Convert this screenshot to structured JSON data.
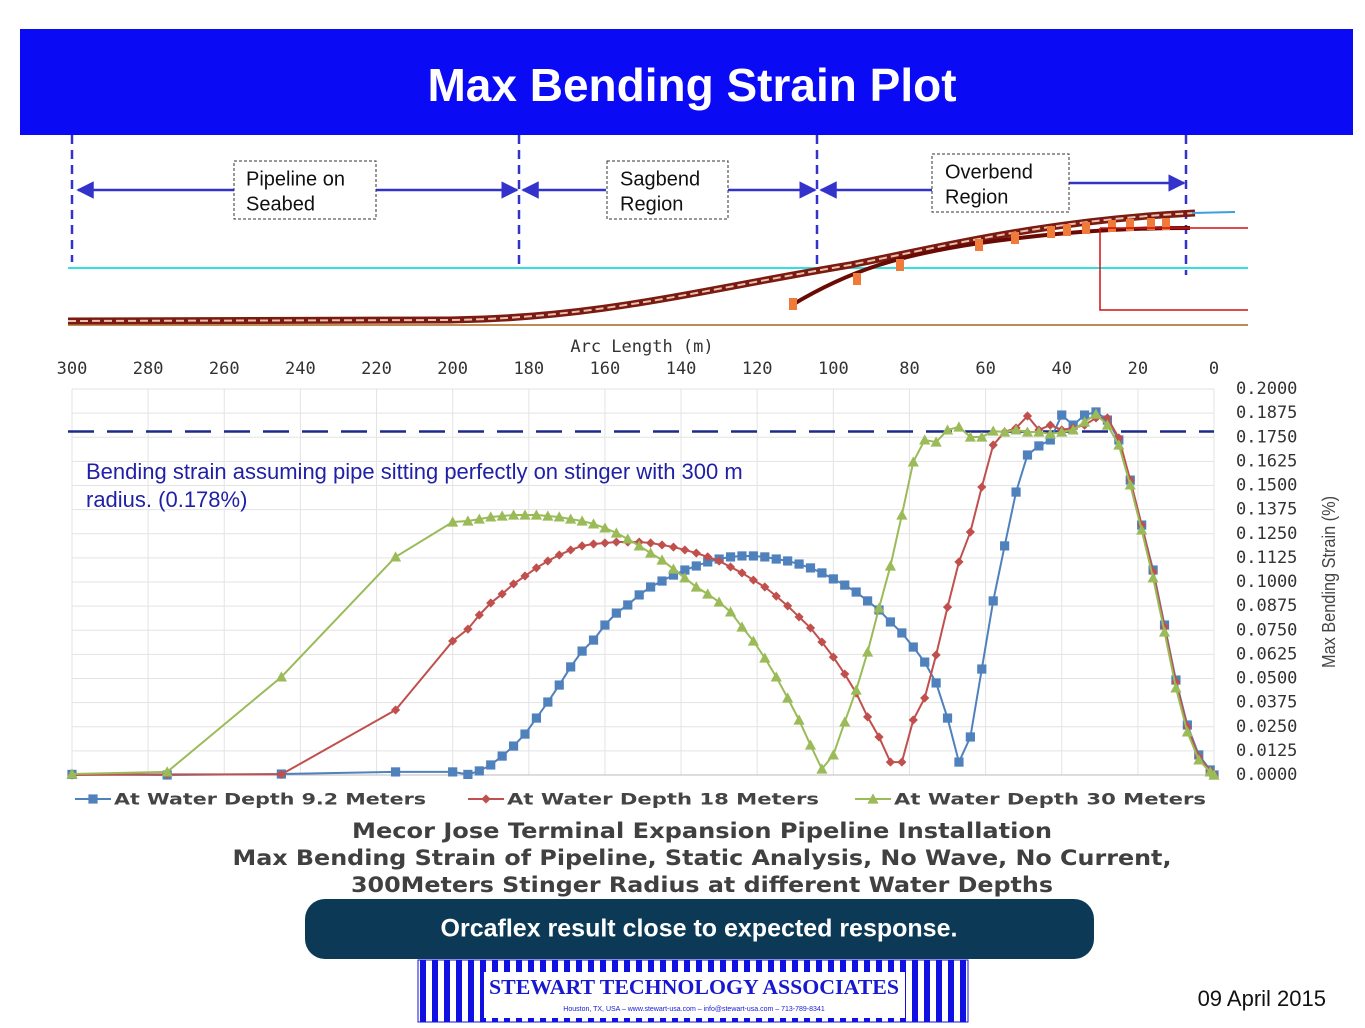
{
  "slide": {
    "title": "Max Bending Strain Plot",
    "regions": [
      [
        "Pipeline on",
        "Seabed"
      ],
      [
        "Sagbend",
        "Region"
      ],
      [
        "Overbend",
        "Region"
      ]
    ],
    "callout": "Orcaflex result close to expected response.",
    "logo": {
      "name": "STEWART TECHNOLOGY ASSOCIATES",
      "contact": "Houston, TX, USA – www.stewart-usa.com – info@stewart-usa.com – 713-789-8341"
    },
    "date": "09 April 2015"
  },
  "chart_data": {
    "type": "line",
    "xlabel": "Arc Length (m)",
    "ylabel": "Max Bending Strain (%)",
    "caption": [
      "Mecor Jose Terminal Expansion Pipeline Installation",
      "Max Bending Strain of Pipeline, Static Analysis, No Wave, No Current,",
      "300Meters Stinger Radius at different Water Depths"
    ],
    "annotation": [
      "Bending strain assuming pipe sitting perfectly on stinger with 300 m",
      "radius. (0.178%)"
    ],
    "reference_value": 0.178,
    "xlim": [
      300,
      0
    ],
    "xticks": [
      300,
      280,
      260,
      240,
      220,
      200,
      180,
      160,
      140,
      120,
      100,
      80,
      60,
      40,
      20,
      0
    ],
    "ylim": [
      0,
      0.2
    ],
    "yticks": [
      {
        "value": 0.2,
        "label": "0.2000"
      },
      {
        "value": 0.1875,
        "label": "0.1875"
      },
      {
        "value": 0.175,
        "label": "0.1750"
      },
      {
        "value": 0.1625,
        "label": "0.1625"
      },
      {
        "value": 0.15,
        "label": "0.1500"
      },
      {
        "value": 0.1375,
        "label": "0.1375"
      },
      {
        "value": 0.125,
        "label": "0.1250"
      },
      {
        "value": 0.1125,
        "label": "0.1125"
      },
      {
        "value": 0.1,
        "label": "0.1000"
      },
      {
        "value": 0.0875,
        "label": "0.0875"
      },
      {
        "value": 0.075,
        "label": "0.0750"
      },
      {
        "value": 0.0625,
        "label": "0.0625"
      },
      {
        "value": 0.05,
        "label": "0.0500"
      },
      {
        "value": 0.0375,
        "label": "0.0375"
      },
      {
        "value": 0.025,
        "label": "0.0250"
      },
      {
        "value": 0.0125,
        "label": "0.0125"
      },
      {
        "value": 0,
        "label": "0.0000"
      }
    ],
    "grid": true,
    "x": [
      300,
      275,
      245,
      215,
      200,
      196,
      193,
      190,
      187,
      184,
      181,
      178,
      175,
      172,
      169,
      166,
      163,
      160,
      157,
      154,
      151,
      148,
      145,
      142,
      139,
      136,
      133,
      130,
      127,
      124,
      121,
      118,
      115,
      112,
      109,
      106,
      103,
      100,
      97,
      94,
      91,
      88,
      85,
      82,
      79,
      76,
      73,
      70,
      67,
      64,
      61,
      58,
      55,
      52,
      49,
      46,
      43,
      40,
      37,
      34,
      31,
      28,
      25,
      22,
      19,
      16,
      13,
      10,
      7,
      4,
      1,
      0
    ],
    "series": [
      {
        "name": "At Water Depth 9.2 Meters",
        "color": "#4f81bd",
        "marker": "square",
        "values": [
          0.0003,
          0,
          0.0005,
          0.0016,
          0.0016,
          0.0003,
          0.0021,
          0.0052,
          0.0098,
          0.015,
          0.0212,
          0.0295,
          0.0378,
          0.0466,
          0.056,
          0.0642,
          0.0699,
          0.0777,
          0.0839,
          0.0881,
          0.0933,
          0.0974,
          0.1005,
          0.1036,
          0.1062,
          0.1083,
          0.1104,
          0.1119,
          0.113,
          0.1135,
          0.1135,
          0.113,
          0.1119,
          0.1109,
          0.1093,
          0.1073,
          0.1047,
          0.1016,
          0.0984,
          0.0948,
          0.0902,
          0.0855,
          0.0793,
          0.0736,
          0.0663,
          0.0585,
          0.0477,
          0.0295,
          0.0067,
          0.0197,
          0.0549,
          0.0902,
          0.1187,
          0.1466,
          0.1658,
          0.1705,
          0.1736,
          0.1865,
          0.1813,
          0.1865,
          0.1881,
          0.1839,
          0.1736,
          0.1528,
          0.1295,
          0.1062,
          0.0777,
          0.0492,
          0.0259,
          0.0104,
          0.0026,
          0
        ]
      },
      {
        "name": "At Water Depth 18 Meters",
        "color": "#c0504d",
        "marker": "diamond",
        "values": [
          0,
          0.0003,
          0.0003,
          0.0337,
          0.0694,
          0.0756,
          0.0829,
          0.0891,
          0.0938,
          0.099,
          0.1031,
          0.1073,
          0.1109,
          0.114,
          0.1166,
          0.1187,
          0.1197,
          0.1202,
          0.1207,
          0.1207,
          0.1207,
          0.1202,
          0.1192,
          0.1181,
          0.1166,
          0.115,
          0.113,
          0.1109,
          0.1078,
          0.1047,
          0.101,
          0.0974,
          0.0927,
          0.0876,
          0.0819,
          0.0762,
          0.0689,
          0.0611,
          0.0523,
          0.0425,
          0.0301,
          0.0197,
          0.0067,
          0.0067,
          0.0285,
          0.0399,
          0.0622,
          0.087,
          0.1104,
          0.1259,
          0.1492,
          0.171,
          0.1777,
          0.1798,
          0.186,
          0.1788,
          0.1813,
          0.1788,
          0.1798,
          0.1813,
          0.185,
          0.185,
          0.1746,
          0.1528,
          0.1295,
          0.1052,
          0.0767,
          0.0482,
          0.0249,
          0.0093,
          0.0021,
          0
        ]
      },
      {
        "name": "At Water Depth 30 Meters",
        "color": "#9bbb59",
        "marker": "triangle",
        "values": [
          0.0005,
          0.0016,
          0.0508,
          0.113,
          0.1311,
          0.1316,
          0.1326,
          0.1337,
          0.1342,
          0.1347,
          0.1347,
          0.1347,
          0.1342,
          0.1337,
          0.1326,
          0.1316,
          0.1301,
          0.128,
          0.1254,
          0.1223,
          0.1187,
          0.115,
          0.1114,
          0.1067,
          0.1021,
          0.0974,
          0.0938,
          0.0896,
          0.0845,
          0.0767,
          0.0694,
          0.0606,
          0.0508,
          0.0399,
          0.0285,
          0.0155,
          0.0031,
          0.0104,
          0.0275,
          0.044,
          0.0637,
          0.0865,
          0.1083,
          0.1347,
          0.1622,
          0.1736,
          0.1725,
          0.1788,
          0.1803,
          0.1751,
          0.1751,
          0.1782,
          0.1777,
          0.1788,
          0.1777,
          0.1777,
          0.1767,
          0.1777,
          0.1788,
          0.1829,
          0.187,
          0.1813,
          0.171,
          0.1503,
          0.1269,
          0.1021,
          0.0741,
          0.0451,
          0.0223,
          0.0078,
          0.0016,
          0
        ]
      }
    ]
  }
}
